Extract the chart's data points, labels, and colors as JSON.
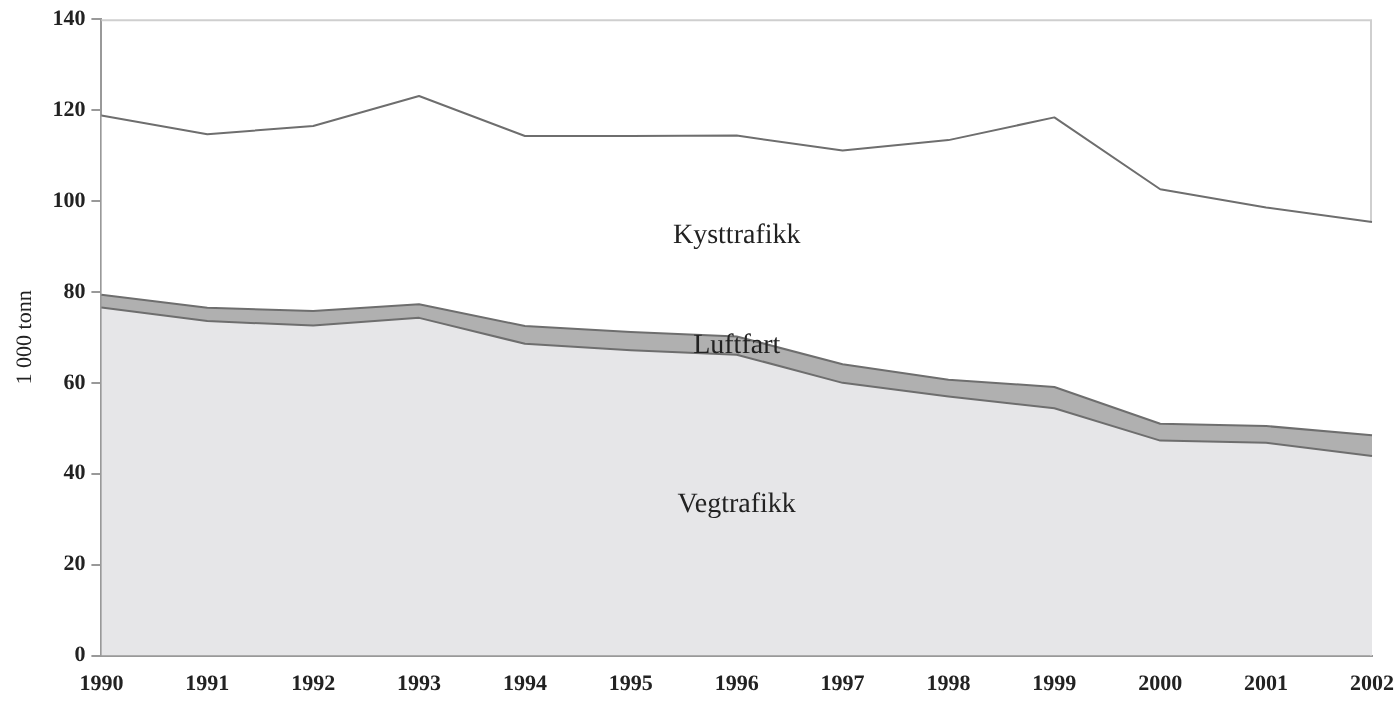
{
  "chart_data": {
    "type": "area",
    "stacked": true,
    "ylabel": "1 000 tonn",
    "categories": [
      "1990",
      "1991",
      "1992",
      "1993",
      "1994",
      "1995",
      "1996",
      "1997",
      "1998",
      "1999",
      "2000",
      "2001",
      "2002"
    ],
    "series": [
      {
        "name": "Vegtrafikk",
        "color": "#e6e6e8",
        "values": [
          76.6,
          73.6,
          72.6,
          74.3,
          68.6,
          67.2,
          66.2,
          60.0,
          57.0,
          54.4,
          47.3,
          46.8,
          43.9
        ]
      },
      {
        "name": "Luftfart",
        "color": "#b0b0b0",
        "values": [
          2.8,
          2.9,
          3.2,
          3.0,
          3.9,
          4.0,
          4.0,
          4.1,
          3.7,
          4.7,
          3.7,
          3.7,
          4.6
        ]
      },
      {
        "name": "Kysttrafikk",
        "color": "#ffffff",
        "values": [
          39.4,
          38.2,
          40.7,
          45.8,
          41.8,
          43.1,
          44.2,
          47.0,
          52.7,
          59.3,
          51.6,
          48.1,
          46.9
        ]
      }
    ],
    "ylim": [
      0,
      140
    ],
    "yticks": [
      0,
      20,
      40,
      60,
      80,
      100,
      120,
      140
    ],
    "grid": false,
    "legend": false,
    "marker": "none",
    "line_style": "solid"
  }
}
